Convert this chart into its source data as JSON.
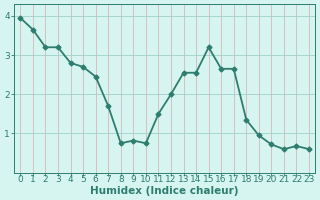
{
  "x": [
    0,
    1,
    2,
    3,
    4,
    5,
    6,
    7,
    8,
    9,
    10,
    11,
    12,
    13,
    14,
    15,
    16,
    17,
    18,
    19,
    20,
    21,
    22,
    23
  ],
  "y": [
    3.95,
    3.65,
    3.2,
    3.2,
    2.8,
    2.7,
    2.45,
    1.7,
    0.75,
    0.82,
    0.75,
    1.5,
    2.0,
    2.55,
    2.55,
    3.2,
    2.65,
    2.65,
    1.35,
    0.95,
    0.72,
    0.6,
    0.68,
    0.6
  ],
  "line_color": "#2e7d6e",
  "marker": "D",
  "marker_size": 2.5,
  "bg_color": "#d6f5f0",
  "hgrid_color": "#a0cfc8",
  "vgrid_color": "#d4b8b8",
  "axis_color": "#2e7d6e",
  "tick_color": "#2e7d6e",
  "xlabel": "Humidex (Indice chaleur)",
  "xlim": [
    -0.5,
    23.5
  ],
  "ylim": [
    0,
    4.3
  ],
  "yticks": [
    1,
    2,
    3,
    4
  ],
  "xticks": [
    0,
    1,
    2,
    3,
    4,
    5,
    6,
    7,
    8,
    9,
    10,
    11,
    12,
    13,
    14,
    15,
    16,
    17,
    18,
    19,
    20,
    21,
    22,
    23
  ],
  "xlabel_fontsize": 7.5,
  "tick_fontsize": 6.5,
  "line_width": 1.3
}
